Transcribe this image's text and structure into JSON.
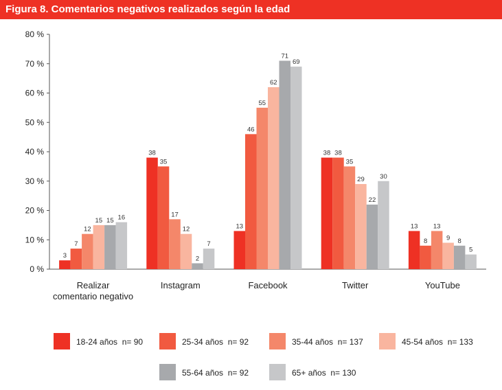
{
  "header": {
    "title": "Figura 8. Comentarios negativos realizados según la edad"
  },
  "chart_data": {
    "type": "bar",
    "title": "Figura 8. Comentarios negativos realizados según la edad",
    "categories": [
      [
        "Realizar",
        "comentario negativo"
      ],
      [
        "Instagram"
      ],
      [
        "Facebook"
      ],
      [
        "Twitter"
      ],
      [
        "YouTube"
      ]
    ],
    "ylim": [
      0,
      80
    ],
    "yticks": [
      0,
      10,
      20,
      30,
      40,
      50,
      60,
      70,
      80
    ],
    "ytick_labels": [
      "0 %",
      "10 %",
      "20 %",
      "30 %",
      "40 %",
      "50 %",
      "60 %",
      "70 %",
      "80 %"
    ],
    "grid": false,
    "legend_position": "bottom",
    "series": [
      {
        "name": "18-24 años  n= 90",
        "color": "#ee3124",
        "values": [
          3,
          38,
          13,
          38,
          13
        ]
      },
      {
        "name": "25-34 años  n= 92",
        "color": "#f15a40",
        "values": [
          7,
          35,
          46,
          38,
          8
        ]
      },
      {
        "name": "35-44 años  n= 137",
        "color": "#f4876a",
        "values": [
          12,
          17,
          55,
          35,
          13
        ]
      },
      {
        "name": "45-54 años  n= 133",
        "color": "#f9b59f",
        "values": [
          15,
          12,
          62,
          29,
          9
        ]
      },
      {
        "name": "55-64 años  n= 92",
        "color": "#a7a9ac",
        "values": [
          15,
          2,
          71,
          22,
          8
        ]
      },
      {
        "name": "65+ años  n= 130",
        "color": "#c6c7c9",
        "values": [
          16,
          7,
          69,
          30,
          5
        ]
      }
    ]
  }
}
